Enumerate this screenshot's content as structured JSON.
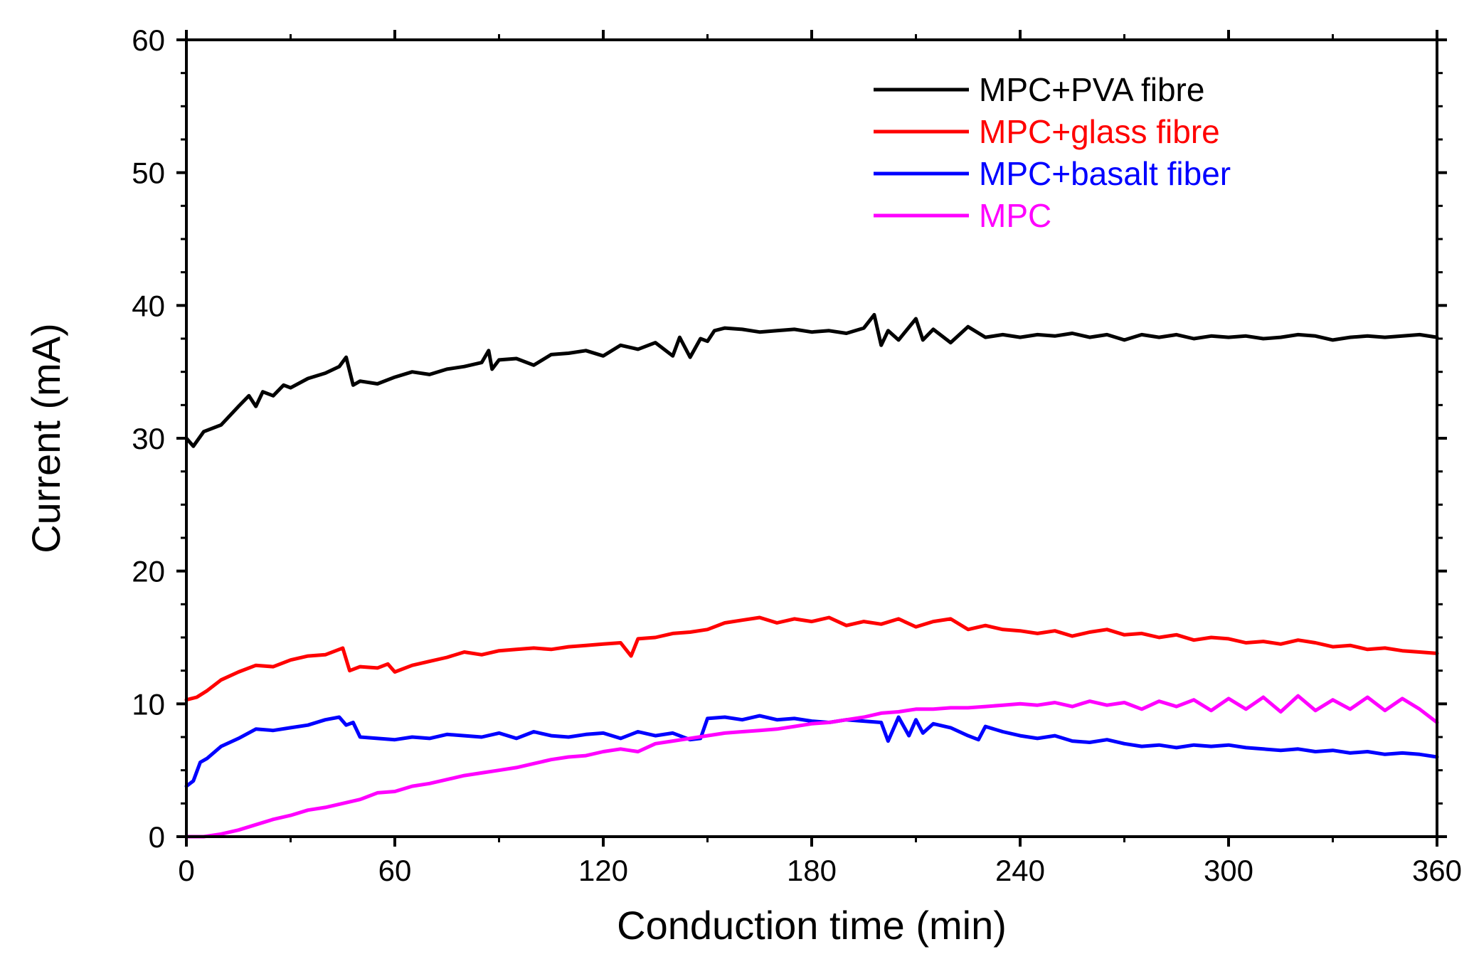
{
  "chart_data": {
    "type": "line",
    "title": "",
    "xlabel": "Conduction time (min)",
    "ylabel": "Current (mA)",
    "xlim": [
      0,
      360
    ],
    "ylim": [
      0,
      60
    ],
    "xticks": [
      0,
      60,
      120,
      180,
      240,
      300,
      360
    ],
    "yticks": [
      0,
      10,
      20,
      30,
      40,
      50,
      60
    ],
    "xtick_labels": [
      "0",
      "60",
      "120",
      "180",
      "240",
      "300",
      "360"
    ],
    "ytick_labels": [
      "0",
      "10",
      "20",
      "30",
      "40",
      "50",
      "60"
    ],
    "grid": false,
    "legend_position": "top-right",
    "series": [
      {
        "name": "MPC+PVA fibre",
        "color": "#000000",
        "x": [
          0,
          2,
          5,
          10,
          15,
          18,
          20,
          22,
          25,
          28,
          30,
          35,
          40,
          44,
          46,
          48,
          50,
          55,
          60,
          65,
          70,
          75,
          80,
          85,
          87,
          88,
          90,
          95,
          100,
          105,
          110,
          115,
          120,
          125,
          130,
          135,
          140,
          142,
          145,
          148,
          150,
          152,
          155,
          160,
          165,
          170,
          175,
          180,
          185,
          190,
          195,
          198,
          200,
          202,
          205,
          210,
          212,
          215,
          220,
          225,
          230,
          235,
          240,
          245,
          250,
          255,
          260,
          265,
          270,
          275,
          280,
          285,
          290,
          295,
          300,
          305,
          310,
          315,
          320,
          325,
          330,
          335,
          340,
          345,
          350,
          355,
          360
        ],
        "values": [
          30.0,
          29.4,
          30.5,
          31.0,
          32.4,
          33.2,
          32.4,
          33.5,
          33.2,
          34.0,
          33.8,
          34.5,
          34.9,
          35.4,
          36.1,
          34.0,
          34.3,
          34.1,
          34.6,
          35.0,
          34.8,
          35.2,
          35.4,
          35.7,
          36.6,
          35.2,
          35.9,
          36.0,
          35.5,
          36.3,
          36.4,
          36.6,
          36.2,
          37.0,
          36.7,
          37.2,
          36.2,
          37.6,
          36.1,
          37.5,
          37.3,
          38.1,
          38.3,
          38.2,
          38.0,
          38.1,
          38.2,
          38.0,
          38.1,
          37.9,
          38.3,
          39.3,
          37.0,
          38.1,
          37.4,
          39.0,
          37.4,
          38.2,
          37.2,
          38.4,
          37.6,
          37.8,
          37.6,
          37.8,
          37.7,
          37.9,
          37.6,
          37.8,
          37.4,
          37.8,
          37.6,
          37.8,
          37.5,
          37.7,
          37.6,
          37.7,
          37.5,
          37.6,
          37.8,
          37.7,
          37.4,
          37.6,
          37.7,
          37.6,
          37.7,
          37.8,
          37.6
        ]
      },
      {
        "name": "MPC+glass fibre",
        "color": "#ff0000",
        "x": [
          0,
          3,
          6,
          10,
          15,
          20,
          25,
          30,
          35,
          40,
          45,
          47,
          50,
          55,
          58,
          60,
          65,
          70,
          75,
          80,
          85,
          90,
          95,
          100,
          105,
          110,
          115,
          120,
          125,
          128,
          130,
          135,
          140,
          145,
          150,
          155,
          160,
          165,
          170,
          175,
          180,
          185,
          190,
          195,
          200,
          205,
          210,
          215,
          220,
          225,
          230,
          235,
          240,
          245,
          250,
          255,
          260,
          265,
          270,
          275,
          280,
          285,
          290,
          295,
          300,
          305,
          310,
          315,
          320,
          325,
          330,
          335,
          340,
          345,
          350,
          355,
          360
        ],
        "values": [
          10.3,
          10.5,
          11.0,
          11.8,
          12.4,
          12.9,
          12.8,
          13.3,
          13.6,
          13.7,
          14.2,
          12.5,
          12.8,
          12.7,
          13.0,
          12.4,
          12.9,
          13.2,
          13.5,
          13.9,
          13.7,
          14.0,
          14.1,
          14.2,
          14.1,
          14.3,
          14.4,
          14.5,
          14.6,
          13.6,
          14.9,
          15.0,
          15.3,
          15.4,
          15.6,
          16.1,
          16.3,
          16.5,
          16.1,
          16.4,
          16.2,
          16.5,
          15.9,
          16.2,
          16.0,
          16.4,
          15.8,
          16.2,
          16.4,
          15.6,
          15.9,
          15.6,
          15.5,
          15.3,
          15.5,
          15.1,
          15.4,
          15.6,
          15.2,
          15.3,
          15.0,
          15.2,
          14.8,
          15.0,
          14.9,
          14.6,
          14.7,
          14.5,
          14.8,
          14.6,
          14.3,
          14.4,
          14.1,
          14.2,
          14.0,
          13.9,
          13.8
        ]
      },
      {
        "name": "MPC+basalt fiber",
        "color": "#0000ff",
        "x": [
          0,
          2,
          4,
          6,
          10,
          15,
          20,
          25,
          30,
          35,
          40,
          44,
          46,
          48,
          50,
          55,
          60,
          65,
          70,
          75,
          80,
          85,
          90,
          95,
          100,
          105,
          110,
          115,
          120,
          125,
          130,
          135,
          140,
          145,
          148,
          150,
          155,
          160,
          165,
          170,
          175,
          180,
          185,
          190,
          195,
          200,
          202,
          205,
          208,
          210,
          212,
          215,
          220,
          225,
          228,
          230,
          235,
          240,
          245,
          250,
          255,
          260,
          265,
          270,
          275,
          280,
          285,
          290,
          295,
          300,
          305,
          310,
          315,
          320,
          325,
          330,
          335,
          340,
          345,
          350,
          355,
          360
        ],
        "values": [
          3.8,
          4.2,
          5.6,
          5.9,
          6.8,
          7.4,
          8.1,
          8.0,
          8.2,
          8.4,
          8.8,
          9.0,
          8.4,
          8.6,
          7.5,
          7.4,
          7.3,
          7.5,
          7.4,
          7.7,
          7.6,
          7.5,
          7.8,
          7.4,
          7.9,
          7.6,
          7.5,
          7.7,
          7.8,
          7.4,
          7.9,
          7.6,
          7.8,
          7.3,
          7.4,
          8.9,
          9.0,
          8.8,
          9.1,
          8.8,
          8.9,
          8.7,
          8.6,
          8.8,
          8.7,
          8.6,
          7.2,
          9.0,
          7.6,
          8.8,
          7.8,
          8.5,
          8.2,
          7.6,
          7.3,
          8.3,
          7.9,
          7.6,
          7.4,
          7.6,
          7.2,
          7.1,
          7.3,
          7.0,
          6.8,
          6.9,
          6.7,
          6.9,
          6.8,
          6.9,
          6.7,
          6.6,
          6.5,
          6.6,
          6.4,
          6.5,
          6.3,
          6.4,
          6.2,
          6.3,
          6.2,
          6.0
        ]
      },
      {
        "name": "MPC",
        "color": "#ff00ff",
        "x": [
          0,
          5,
          10,
          15,
          20,
          25,
          30,
          35,
          40,
          45,
          50,
          55,
          60,
          65,
          70,
          75,
          80,
          85,
          90,
          95,
          100,
          105,
          110,
          115,
          120,
          125,
          130,
          135,
          140,
          145,
          150,
          155,
          160,
          165,
          170,
          175,
          180,
          185,
          190,
          195,
          200,
          205,
          210,
          215,
          220,
          225,
          230,
          235,
          240,
          245,
          250,
          255,
          260,
          265,
          270,
          275,
          280,
          285,
          290,
          295,
          300,
          305,
          310,
          315,
          320,
          325,
          330,
          335,
          340,
          345,
          350,
          355,
          360
        ],
        "values": [
          0.0,
          0.0,
          0.2,
          0.5,
          0.9,
          1.3,
          1.6,
          2.0,
          2.2,
          2.5,
          2.8,
          3.3,
          3.4,
          3.8,
          4.0,
          4.3,
          4.6,
          4.8,
          5.0,
          5.2,
          5.5,
          5.8,
          6.0,
          6.1,
          6.4,
          6.6,
          6.4,
          7.0,
          7.2,
          7.4,
          7.6,
          7.8,
          7.9,
          8.0,
          8.1,
          8.3,
          8.5,
          8.6,
          8.8,
          9.0,
          9.3,
          9.4,
          9.6,
          9.6,
          9.7,
          9.7,
          9.8,
          9.9,
          10.0,
          9.9,
          10.1,
          9.8,
          10.2,
          9.9,
          10.1,
          9.6,
          10.2,
          9.8,
          10.3,
          9.5,
          10.4,
          9.6,
          10.5,
          9.4,
          10.6,
          9.5,
          10.3,
          9.6,
          10.5,
          9.5,
          10.4,
          9.6,
          8.6
        ]
      }
    ]
  }
}
